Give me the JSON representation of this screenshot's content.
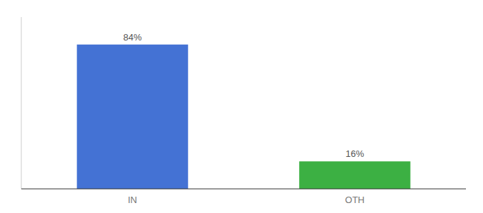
{
  "chart_data": {
    "type": "bar",
    "categories": [
      "IN",
      "OTH"
    ],
    "values": [
      84,
      16
    ],
    "value_labels": [
      "84%",
      "16%"
    ],
    "data_labels": true,
    "colors": [
      "#4472d4",
      "#3cb043"
    ],
    "ylim": [
      0,
      100
    ],
    "yticks": [],
    "tick_labels": "x",
    "grid": false
  }
}
